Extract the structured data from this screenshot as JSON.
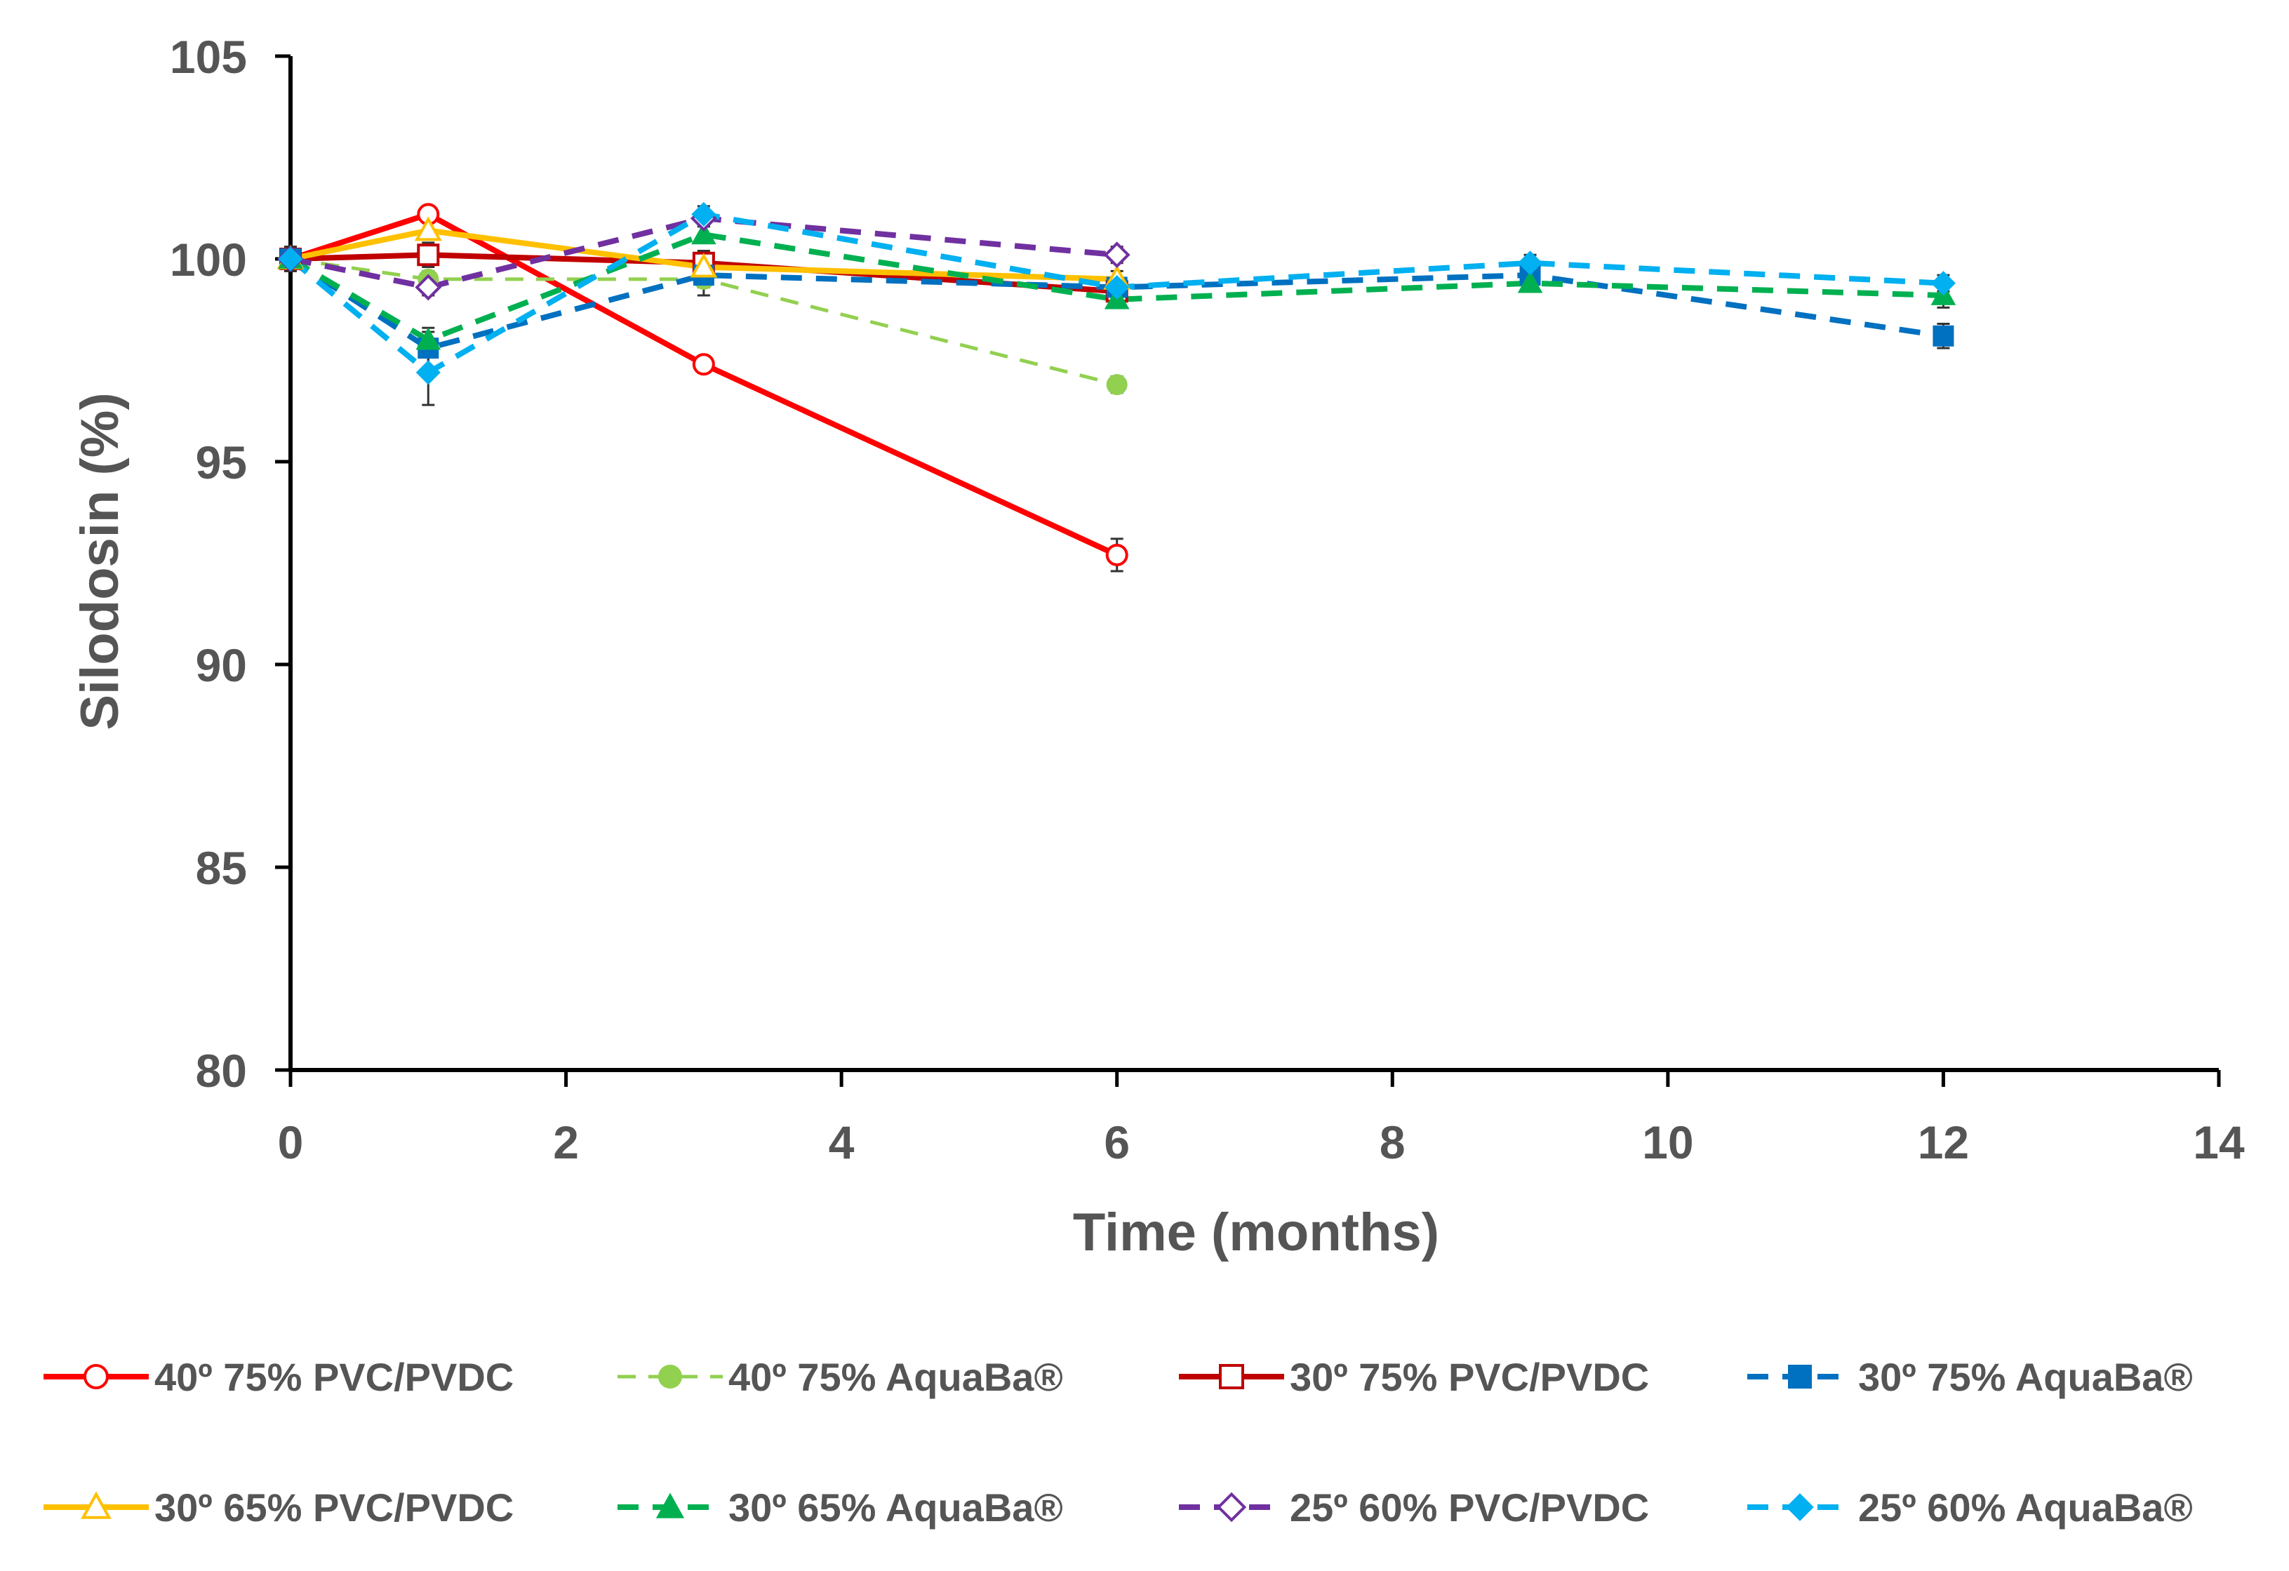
{
  "chart_data": {
    "type": "line",
    "title": "",
    "xlabel": "Time (months)",
    "ylabel": "Silodosin (%)",
    "xlim": [
      0,
      14
    ],
    "ylim": [
      80,
      105
    ],
    "xticks": [
      0,
      2,
      4,
      6,
      8,
      10,
      12,
      14
    ],
    "yticks": [
      80,
      85,
      90,
      95,
      100,
      105
    ],
    "grid": false,
    "legend_position": "bottom",
    "series": [
      {
        "name": "40º 75% PVC/PVDC",
        "color": "#ff0000",
        "dash": "solid",
        "marker": "circle-open",
        "x": [
          0,
          1,
          3,
          6
        ],
        "y": [
          100,
          101.1,
          97.4,
          92.7
        ],
        "err": [
          0.2,
          0.2,
          0.2,
          0.4
        ]
      },
      {
        "name": "40º 75% AquaBa®",
        "color": "#92d050",
        "dash": "dashed-thin",
        "marker": "circle-filled",
        "x": [
          0,
          1,
          3,
          6
        ],
        "y": [
          100,
          99.5,
          99.5,
          96.9
        ],
        "err": [
          0.2,
          0.2,
          0.2,
          0.2
        ]
      },
      {
        "name": "30º 75% PVC/PVDC",
        "color": "#c00000",
        "dash": "solid",
        "marker": "square-open",
        "x": [
          0,
          1,
          3,
          6
        ],
        "y": [
          100,
          100.1,
          99.9,
          99.2
        ],
        "err": [
          0.3,
          0.3,
          0.3,
          0.2
        ]
      },
      {
        "name": "30º 75% AquaBa®",
        "color": "#0070c0",
        "dash": "dashed",
        "marker": "square-filled",
        "x": [
          0,
          1,
          3,
          6,
          9,
          12
        ],
        "y": [
          100,
          97.8,
          99.6,
          99.3,
          99.6,
          98.1
        ],
        "err": [
          0.3,
          0.5,
          0.5,
          0.2,
          0.2,
          0.3
        ]
      },
      {
        "name": "30º 65% PVC/PVDC",
        "color": "#ffc000",
        "dash": "solid",
        "marker": "triangle-open",
        "x": [
          0,
          1,
          3,
          6
        ],
        "y": [
          100,
          100.7,
          99.8,
          99.5
        ],
        "err": [
          0.2,
          0.2,
          0.2,
          0.2
        ]
      },
      {
        "name": "30º 65% AquaBa®",
        "color": "#00b050",
        "dash": "dashed",
        "marker": "triangle-filled",
        "x": [
          0,
          1,
          3,
          6,
          9,
          12
        ],
        "y": [
          100,
          98.0,
          100.6,
          99.0,
          99.4,
          99.1
        ],
        "err": [
          0.2,
          0.2,
          0.2,
          0.2,
          0.2,
          0.3
        ]
      },
      {
        "name": "25º 60% PVC/PVDC",
        "color": "#7030a0",
        "dash": "dashed",
        "marker": "diamond-open",
        "x": [
          0,
          1,
          3,
          6
        ],
        "y": [
          100,
          99.3,
          101.0,
          100.1
        ],
        "err": [
          0.2,
          0.2,
          0.2,
          0.2
        ]
      },
      {
        "name": "25º 60% AquaBa®",
        "color": "#00b0f0",
        "dash": "dashed",
        "marker": "diamond-filled",
        "x": [
          0,
          1,
          3,
          6,
          9,
          12
        ],
        "y": [
          100,
          97.2,
          101.1,
          99.3,
          99.9,
          99.4
        ],
        "err": [
          0.2,
          0.8,
          0.2,
          0.2,
          0.2,
          0.2
        ]
      }
    ]
  }
}
